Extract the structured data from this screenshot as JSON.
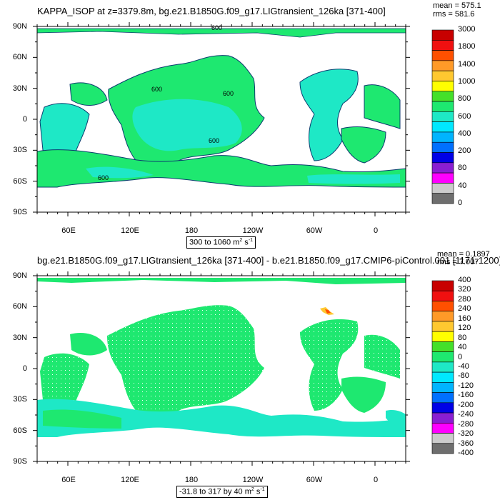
{
  "panels": [
    {
      "title": "KAPPA_ISOP at z=3379.8m, bg.e21.B1850G.f09_g17.LIGtransient_126ka [371-400]",
      "stats": {
        "mean": "mean = 575.1",
        "rms": "rms = 581.6"
      },
      "lat_labels": [
        "90N",
        "60N",
        "30N",
        "0",
        "30S",
        "60S",
        "90S"
      ],
      "lon_labels": [
        "60E",
        "120E",
        "180",
        "120W",
        "60W",
        "0"
      ],
      "info_label": "300 to 1060 m",
      "info_unit_suffix": " s",
      "info_sup1": "2",
      "info_sup2": "-1",
      "contour_labels": [
        "600",
        "600",
        "600",
        "600",
        "600"
      ],
      "colorbar_labels": [
        "3000",
        "1800",
        "1400",
        "1000",
        "800",
        "600",
        "400",
        "200",
        "80",
        "40",
        "0"
      ],
      "colorbar_colors": [
        "#c80000",
        "#f01010",
        "#ff5000",
        "#ff9a28",
        "#ffc830",
        "#ffff00",
        "#44e02a",
        "#1ee870",
        "#1ee8c6",
        "#00e8ff",
        "#00b4ff",
        "#0070ff",
        "#0000e6",
        "#8a1ed2",
        "#ff00ff",
        "#cccccc",
        "#6e6e6e"
      ]
    },
    {
      "title": "bg.e21.B1850G.f09_g17.LIGtransient_126ka [371-400] - b.e21.B1850.f09_g17.CMIP6-piControl.001 [1171-1200]",
      "stats": {
        "mean": "mean = 0.1897",
        "rms": "rms = 7.007"
      },
      "lat_labels": [
        "90N",
        "60N",
        "30N",
        "0",
        "30S",
        "60S",
        "90S"
      ],
      "lon_labels": [
        "60E",
        "120E",
        "180",
        "120W",
        "60W",
        "0"
      ],
      "info_label": "-31.8 to 317 by 40 m",
      "info_unit_suffix": " s",
      "info_sup1": "2",
      "info_sup2": "-1",
      "colorbar_labels": [
        "400",
        "320",
        "280",
        "240",
        "160",
        "120",
        "80",
        "40",
        "0",
        "-40",
        "-80",
        "-120",
        "-160",
        "-200",
        "-240",
        "-280",
        "-320",
        "-360",
        "-400"
      ],
      "colorbar_colors": [
        "#c80000",
        "#f01010",
        "#ff5000",
        "#ff9a28",
        "#ffc830",
        "#ffff00",
        "#44e02a",
        "#1ee870",
        "#1ee8c6",
        "#00e8ff",
        "#00b4ff",
        "#0070ff",
        "#0000e6",
        "#8a1ed2",
        "#ff00ff",
        "#cccccc",
        "#6e6e6e"
      ]
    }
  ],
  "colors": {
    "ocean_main": "#1ee870",
    "ocean_cyan": "#1ee8c6",
    "ocean_lightblue": "#00e8ff",
    "land": "#ffffff",
    "frame": "#000000",
    "contour_outline": "#0a3c6e"
  }
}
